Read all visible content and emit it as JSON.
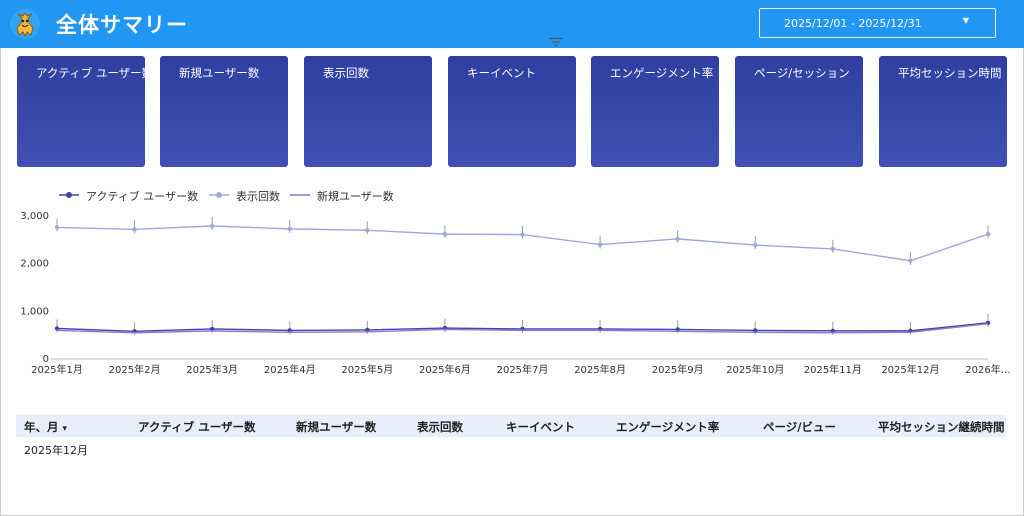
{
  "header": {
    "title": "全体サマリー",
    "date_range": "2025/12/01 - 2025/12/31",
    "bg_color": "#2196f3"
  },
  "cards": [
    {
      "label": "アクティブ ユーザー数"
    },
    {
      "label": "新規ユーザー数"
    },
    {
      "label": "表示回数"
    },
    {
      "label": "キーイベント"
    },
    {
      "label": "エンゲージメント率"
    },
    {
      "label": "ページ/セッション"
    },
    {
      "label": "平均セッション時間"
    }
  ],
  "chart_data": {
    "type": "line",
    "categories": [
      "2025年1月",
      "2025年2月",
      "2025年3月",
      "2025年4月",
      "2025年5月",
      "2025年6月",
      "2025年7月",
      "2025年8月",
      "2025年9月",
      "2025年10月",
      "2025年11月",
      "2025年12月",
      "2026年…"
    ],
    "y_ticks": [
      "0",
      "1,000",
      "2,000",
      "3,000"
    ],
    "ylim": [
      0,
      3000
    ],
    "legend": "top-left",
    "series": [
      {
        "name": "アクティブ ユーザー数",
        "color": "#3949ab",
        "marker": true,
        "values": [
          640,
          580,
          630,
          600,
          610,
          650,
          630,
          630,
          620,
          600,
          590,
          590,
          760
        ]
      },
      {
        "name": "表示回数",
        "color": "#9fa8da",
        "marker": true,
        "values": [
          2760,
          2720,
          2790,
          2730,
          2700,
          2620,
          2610,
          2400,
          2520,
          2390,
          2310,
          2060,
          2620
        ]
      },
      {
        "name": "新規ユーザー数",
        "color": "#9575cd",
        "marker": false,
        "values": [
          600,
          550,
          590,
          560,
          570,
          620,
          600,
          600,
          580,
          560,
          550,
          560,
          740
        ]
      }
    ]
  },
  "table": {
    "headers": [
      "年、月",
      "アクティブ ユーザー数",
      "新規ユーザー数",
      "表示回数",
      "キーイベント",
      "エンゲージメント率",
      "ページ/ビュー",
      "平均セッション継続時間"
    ],
    "sort_indicator": "▾",
    "rows": [
      {
        "month": "2025年12月"
      }
    ]
  }
}
